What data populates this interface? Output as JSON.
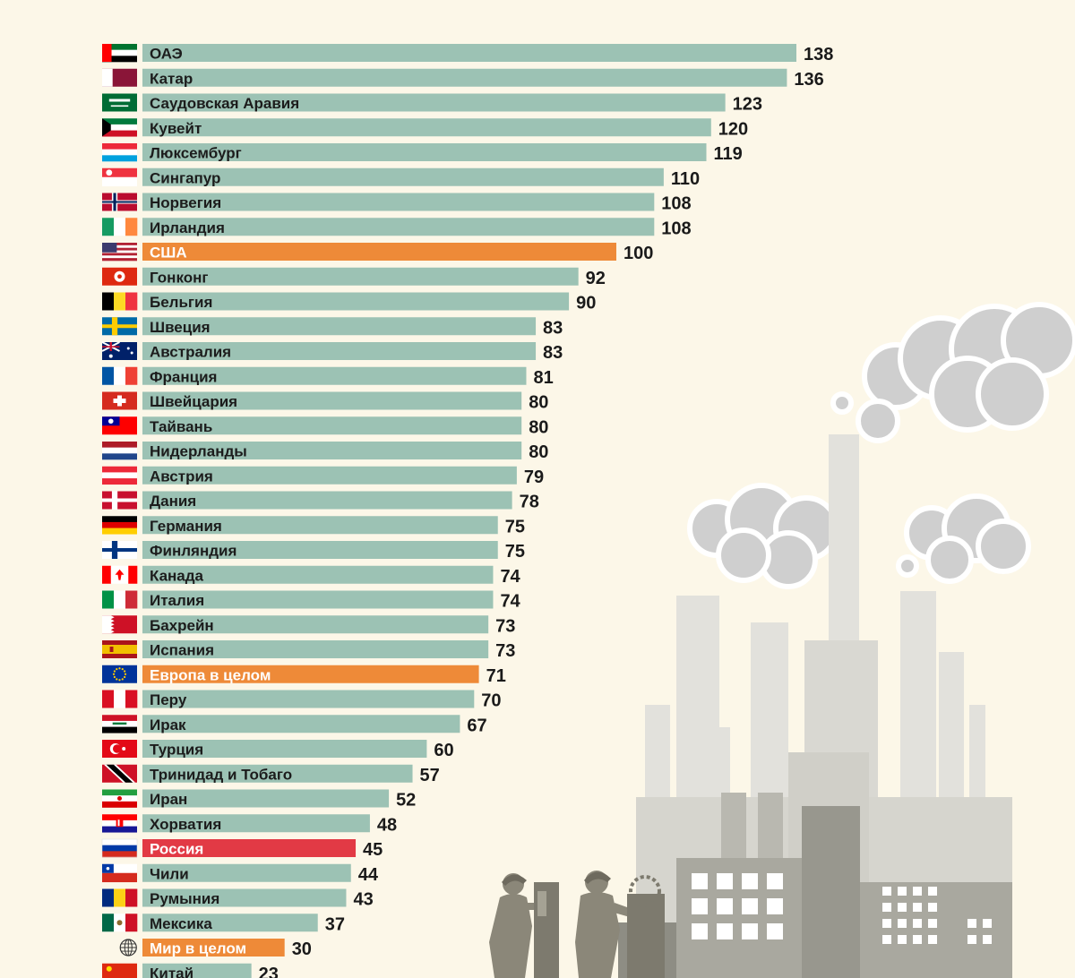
{
  "chart_data": {
    "type": "bar",
    "orientation": "horizontal",
    "title": "",
    "xlabel": "",
    "ylabel": "",
    "xlim": [
      0,
      138
    ],
    "grid": false,
    "legend": "none",
    "colors": {
      "default": "#9cc2b4",
      "highlight_orange": "#ee8a38",
      "highlight_red": "#e23a45",
      "background": "#fcf7e8"
    },
    "bars": [
      {
        "label": "ОАЭ",
        "value": 138,
        "flag": "uae-flag-icon"
      },
      {
        "label": "Катар",
        "value": 136,
        "flag": "qatar-flag-icon"
      },
      {
        "label": "Саудовская Аравия",
        "value": 123,
        "flag": "saudi-arabia-flag-icon"
      },
      {
        "label": "Кувейт",
        "value": 120,
        "flag": "kuwait-flag-icon"
      },
      {
        "label": "Люксембург",
        "value": 119,
        "flag": "luxembourg-flag-icon"
      },
      {
        "label": "Сингапур",
        "value": 110,
        "flag": "singapore-flag-icon"
      },
      {
        "label": "Норвегия",
        "value": 108,
        "flag": "norway-flag-icon"
      },
      {
        "label": "Ирландия",
        "value": 108,
        "flag": "ireland-flag-icon"
      },
      {
        "label": "США",
        "value": 100,
        "flag": "usa-flag-icon",
        "highlight": "orange"
      },
      {
        "label": "Гонконг",
        "value": 92,
        "flag": "hong-kong-flag-icon"
      },
      {
        "label": "Бельгия",
        "value": 90,
        "flag": "belgium-flag-icon"
      },
      {
        "label": "Швеция",
        "value": 83,
        "flag": "sweden-flag-icon"
      },
      {
        "label": "Австралия",
        "value": 83,
        "flag": "australia-flag-icon"
      },
      {
        "label": "Франция",
        "value": 81,
        "flag": "france-flag-icon"
      },
      {
        "label": "Швейцария",
        "value": 80,
        "flag": "switzerland-flag-icon"
      },
      {
        "label": "Тайвань",
        "value": 80,
        "flag": "taiwan-flag-icon"
      },
      {
        "label": "Нидерланды",
        "value": 80,
        "flag": "netherlands-flag-icon"
      },
      {
        "label": "Австрия",
        "value": 79,
        "flag": "austria-flag-icon"
      },
      {
        "label": "Дания",
        "value": 78,
        "flag": "denmark-flag-icon"
      },
      {
        "label": "Германия",
        "value": 75,
        "flag": "germany-flag-icon"
      },
      {
        "label": "Финляндия",
        "value": 75,
        "flag": "finland-flag-icon"
      },
      {
        "label": "Канада",
        "value": 74,
        "flag": "canada-flag-icon"
      },
      {
        "label": "Италия",
        "value": 74,
        "flag": "italy-flag-icon"
      },
      {
        "label": "Бахрейн",
        "value": 73,
        "flag": "bahrain-flag-icon"
      },
      {
        "label": "Испания",
        "value": 73,
        "flag": "spain-flag-icon"
      },
      {
        "label": "Европа в целом",
        "value": 71,
        "flag": "eu-flag-icon",
        "highlight": "orange"
      },
      {
        "label": "Перу",
        "value": 70,
        "flag": "peru-flag-icon"
      },
      {
        "label": "Ирак",
        "value": 67,
        "flag": "iraq-flag-icon"
      },
      {
        "label": "Турция",
        "value": 60,
        "flag": "turkey-flag-icon"
      },
      {
        "label": "Тринидад и Тобаго",
        "value": 57,
        "flag": "trinidad-and-tobago-flag-icon"
      },
      {
        "label": "Иран",
        "value": 52,
        "flag": "iran-flag-icon"
      },
      {
        "label": "Хорватия",
        "value": 48,
        "flag": "croatia-flag-icon"
      },
      {
        "label": "Россия",
        "value": 45,
        "flag": "russia-flag-icon",
        "highlight": "red"
      },
      {
        "label": "Чили",
        "value": 44,
        "flag": "chile-flag-icon"
      },
      {
        "label": "Румыния",
        "value": 43,
        "flag": "romania-flag-icon"
      },
      {
        "label": "Мексика",
        "value": 37,
        "flag": "mexico-flag-icon"
      },
      {
        "label": "Мир в целом",
        "value": 30,
        "flag": "globe-icon",
        "highlight": "orange"
      },
      {
        "label": "Китай",
        "value": 23,
        "flag": "china-flag-icon"
      }
    ]
  }
}
